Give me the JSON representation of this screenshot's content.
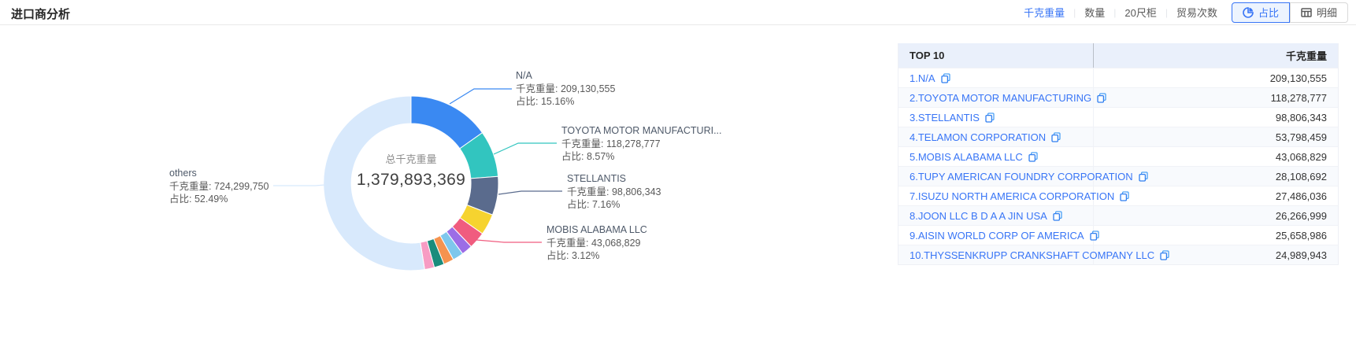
{
  "header": {
    "title": "进口商分析",
    "metrics": [
      {
        "label": "千克重量",
        "active": true
      },
      {
        "label": "数量",
        "active": false
      },
      {
        "label": "20尺柜",
        "active": false
      },
      {
        "label": "贸易次数",
        "active": false
      }
    ],
    "view_buttons": [
      {
        "label": "占比",
        "icon": "pie-icon",
        "active": true
      },
      {
        "label": "明细",
        "icon": "table-icon",
        "active": false
      }
    ]
  },
  "chart_data": {
    "type": "pie",
    "title": "进口商分析",
    "center_label": "总千克重量",
    "center_value": "1,379,893,369",
    "legend_position": "none",
    "series": [
      {
        "name": "N/A",
        "value": 209130555,
        "percent": 15.16,
        "color": "#3a89f2"
      },
      {
        "name": "TOYOTA MOTOR MANUFACTURING",
        "value": 118278777,
        "percent": 8.57,
        "color": "#32c5bf"
      },
      {
        "name": "STELLANTIS",
        "value": 98806343,
        "percent": 7.16,
        "color": "#5a6b8d"
      },
      {
        "name": "TELAMON CORPORATION",
        "value": 53798459,
        "percent": 3.9,
        "color": "#f6d32f"
      },
      {
        "name": "MOBIS ALABAMA LLC",
        "value": 43068829,
        "percent": 3.12,
        "color": "#f05c7f"
      },
      {
        "name": "TUPY AMERICAN FOUNDRY CORPORATION",
        "value": 28108692,
        "percent": 2.04,
        "color": "#9c6de6"
      },
      {
        "name": "ISUZU NORTH AMERICA CORPORATION",
        "value": 27486036,
        "percent": 1.99,
        "color": "#7ec7ec"
      },
      {
        "name": "JOON LLC B D A A JIN USA",
        "value": 26266999,
        "percent": 1.9,
        "color": "#f5934f"
      },
      {
        "name": "AISIN WORLD CORP OF AMERICA",
        "value": 25658986,
        "percent": 1.86,
        "color": "#1a8c7c"
      },
      {
        "name": "THYSSENKRUPP CRANKSHAFT COMPANY LLC",
        "value": 24989943,
        "percent": 1.81,
        "color": "#f79cc4"
      },
      {
        "name": "others",
        "value": 724299750,
        "percent": 52.49,
        "color": "#d8e9fc"
      }
    ],
    "callout_labels": [
      {
        "series_index": 0,
        "name": "N/A",
        "value_line": "千克重量: 209,130,555",
        "percent_line": "占比: 15.16%"
      },
      {
        "series_index": 1,
        "name": "TOYOTA MOTOR MANUFACTURI...",
        "value_line": "千克重量: 118,278,777",
        "percent_line": "占比: 8.57%"
      },
      {
        "series_index": 2,
        "name": "STELLANTIS",
        "value_line": "千克重量: 98,806,343",
        "percent_line": "占比: 7.16%"
      },
      {
        "series_index": 4,
        "name": "MOBIS ALABAMA LLC",
        "value_line": "千克重量: 43,068,829",
        "percent_line": "占比: 3.12%"
      },
      {
        "series_index": 10,
        "name": "others",
        "value_line": "千克重量: 724,299,750",
        "percent_line": "占比: 52.49%"
      }
    ]
  },
  "table": {
    "header": {
      "rank_col": "TOP 10",
      "value_col": "千克重量"
    },
    "rows": [
      {
        "name": "1.N/A",
        "value": "209,130,555"
      },
      {
        "name": "2.TOYOTA MOTOR MANUFACTURING",
        "value": "118,278,777"
      },
      {
        "name": "3.STELLANTIS",
        "value": "98,806,343"
      },
      {
        "name": "4.TELAMON CORPORATION",
        "value": "53,798,459"
      },
      {
        "name": "5.MOBIS ALABAMA LLC",
        "value": "43,068,829"
      },
      {
        "name": "6.TUPY AMERICAN FOUNDRY CORPORATION",
        "value": "28,108,692"
      },
      {
        "name": "7.ISUZU NORTH AMERICA CORPORATION",
        "value": "27,486,036"
      },
      {
        "name": "8.JOON LLC B D A A JIN USA",
        "value": "26,266,999"
      },
      {
        "name": "9.AISIN WORLD CORP OF AMERICA",
        "value": "25,658,986"
      },
      {
        "name": "10.THYSSENKRUPP CRANKSHAFT COMPANY LLC",
        "value": "24,989,943"
      }
    ]
  },
  "colors": {
    "accent": "#3875f6",
    "table_header_bg": "#eaf0fb"
  }
}
